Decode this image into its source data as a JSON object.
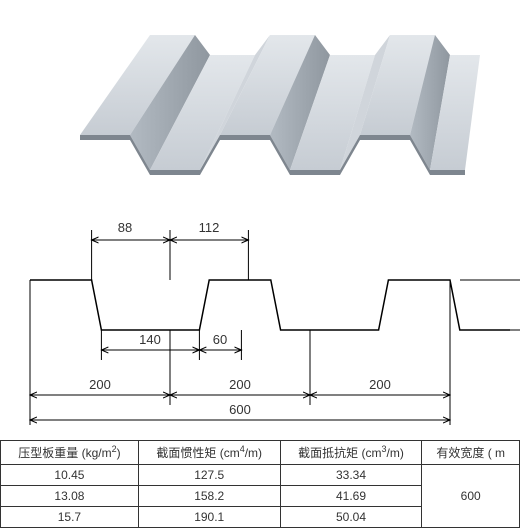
{
  "render3d": {
    "deck_color_light": "#d6dbe0",
    "deck_color_mid": "#bcc3ca",
    "deck_color_dark": "#9aa2ab",
    "deck_color_shadow": "#7e868f",
    "background": "#ffffff"
  },
  "profile": {
    "type": "trapezoidal-deck-profile",
    "top_width_1": "88",
    "top_width_2": "112",
    "bottom_width_1": "140",
    "bottom_width_2": "60",
    "pitch": "200",
    "pitch_2": "200",
    "pitch_3": "200",
    "total_width": "600",
    "stroke_color": "#000000",
    "dim_color": "#000000",
    "fontsize": 13
  },
  "table": {
    "columns": [
      "压型板重量 (kg/m<sup>2</sup>)",
      "截面惯性矩 (cm<sup>4</sup>/m)",
      "截面抵抗矩 (cm<sup>3</sup>/m)",
      "有效宽度 ( m"
    ],
    "rows": [
      [
        "10.45",
        "127.5",
        "33.34"
      ],
      [
        "13.08",
        "158.2",
        "41.69"
      ],
      [
        "15.7",
        "190.1",
        "50.04"
      ]
    ],
    "effective_width": "600",
    "border_color": "#333333",
    "header_bg": "#ffffff",
    "cell_bg": "#ffffff"
  }
}
